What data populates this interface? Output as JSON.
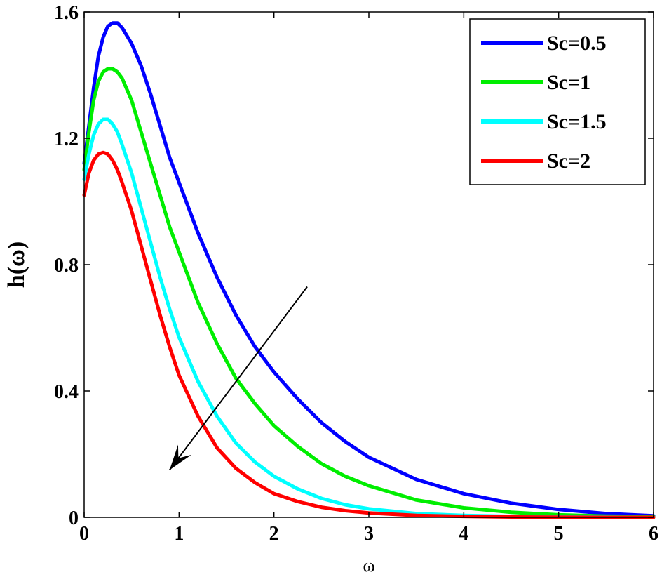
{
  "chart_data": {
    "type": "line",
    "xlabel": "ω",
    "ylabel": "h(ω)",
    "xlim": [
      0,
      6
    ],
    "ylim": [
      0,
      1.6
    ],
    "xticks": [
      0,
      1,
      2,
      3,
      4,
      5,
      6
    ],
    "xtick_labels": [
      "0",
      "1",
      "2",
      "3",
      "4",
      "5",
      "6"
    ],
    "yticks": [
      0,
      0.4,
      0.8,
      1.2,
      1.6
    ],
    "ytick_labels": [
      "0",
      "0.4",
      "0.8",
      "1.2",
      "1.6"
    ],
    "grid": false,
    "legend_position": "top-right",
    "series": [
      {
        "name": "Sc=0.5",
        "color": "#0000ff",
        "x": [
          0,
          0.05,
          0.1,
          0.15,
          0.2,
          0.25,
          0.3,
          0.35,
          0.4,
          0.5,
          0.6,
          0.7,
          0.8,
          0.9,
          1.0,
          1.2,
          1.4,
          1.6,
          1.8,
          2.0,
          2.25,
          2.5,
          2.75,
          3.0,
          3.5,
          4.0,
          4.5,
          5.0,
          5.5,
          6.0
        ],
        "y": [
          1.12,
          1.24,
          1.36,
          1.46,
          1.52,
          1.555,
          1.565,
          1.565,
          1.55,
          1.5,
          1.43,
          1.34,
          1.24,
          1.14,
          1.06,
          0.9,
          0.76,
          0.64,
          0.54,
          0.46,
          0.375,
          0.3,
          0.24,
          0.19,
          0.12,
          0.075,
          0.045,
          0.025,
          0.012,
          0.005
        ]
      },
      {
        "name": "Sc=1",
        "color": "#00ee00",
        "x": [
          0,
          0.05,
          0.1,
          0.15,
          0.2,
          0.25,
          0.3,
          0.35,
          0.4,
          0.5,
          0.6,
          0.7,
          0.8,
          0.9,
          1.0,
          1.2,
          1.4,
          1.6,
          1.8,
          2.0,
          2.25,
          2.5,
          2.75,
          3.0,
          3.5,
          4.0,
          4.5,
          5.0,
          5.5,
          6.0
        ],
        "y": [
          1.1,
          1.22,
          1.32,
          1.38,
          1.41,
          1.42,
          1.42,
          1.41,
          1.39,
          1.32,
          1.22,
          1.12,
          1.02,
          0.92,
          0.84,
          0.68,
          0.55,
          0.44,
          0.36,
          0.29,
          0.225,
          0.17,
          0.13,
          0.1,
          0.055,
          0.03,
          0.016,
          0.008,
          0.004,
          0.002
        ]
      },
      {
        "name": "Sc=1.5",
        "color": "#00ffff",
        "x": [
          0,
          0.05,
          0.1,
          0.15,
          0.2,
          0.25,
          0.3,
          0.35,
          0.4,
          0.5,
          0.6,
          0.7,
          0.8,
          0.9,
          1.0,
          1.2,
          1.4,
          1.6,
          1.8,
          2.0,
          2.25,
          2.5,
          2.75,
          3.0,
          3.5,
          4.0,
          4.5,
          5.0,
          5.5,
          6.0
        ],
        "y": [
          1.07,
          1.15,
          1.21,
          1.245,
          1.26,
          1.26,
          1.245,
          1.22,
          1.18,
          1.09,
          0.98,
          0.87,
          0.76,
          0.66,
          0.57,
          0.43,
          0.32,
          0.235,
          0.175,
          0.13,
          0.09,
          0.06,
          0.04,
          0.027,
          0.012,
          0.006,
          0.003,
          0.001,
          0.0005,
          0.0
        ]
      },
      {
        "name": "Sc=2",
        "color": "#ff0000",
        "x": [
          0,
          0.05,
          0.1,
          0.15,
          0.2,
          0.25,
          0.3,
          0.35,
          0.4,
          0.5,
          0.6,
          0.7,
          0.8,
          0.9,
          1.0,
          1.2,
          1.4,
          1.6,
          1.8,
          2.0,
          2.25,
          2.5,
          2.75,
          3.0,
          3.5,
          4.0,
          4.5,
          5.0,
          5.5,
          6.0
        ],
        "y": [
          1.02,
          1.09,
          1.13,
          1.15,
          1.155,
          1.15,
          1.13,
          1.1,
          1.06,
          0.97,
          0.86,
          0.75,
          0.64,
          0.54,
          0.45,
          0.32,
          0.22,
          0.155,
          0.11,
          0.075,
          0.05,
          0.032,
          0.021,
          0.014,
          0.006,
          0.003,
          0.001,
          0.0005,
          0.0,
          0.0
        ]
      }
    ],
    "arrow": {
      "from": [
        2.35,
        0.73
      ],
      "to": [
        0.9,
        0.15
      ],
      "color": "#000000"
    }
  }
}
